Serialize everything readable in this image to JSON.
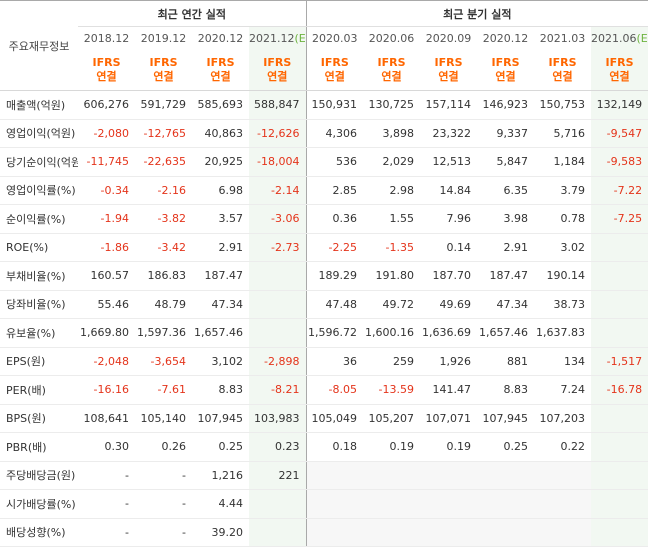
{
  "header": {
    "row_label": "주요재무정보",
    "annual_title": "최근 연간 실적",
    "quarterly_title": "최근 분기 실적",
    "estimate_mark": "(E)",
    "ifrs_line1": "IFRS",
    "ifrs_line2": "연결",
    "periods": [
      {
        "label": "2018.12"
      },
      {
        "label": "2019.12"
      },
      {
        "label": "2020.12"
      },
      {
        "label": "2021.12",
        "estimate": true
      },
      {
        "label": "2020.03"
      },
      {
        "label": "2020.06"
      },
      {
        "label": "2020.09"
      },
      {
        "label": "2020.12"
      },
      {
        "label": "2021.03"
      },
      {
        "label": "2021.06",
        "estimate": true
      }
    ]
  },
  "rows": [
    {
      "label": "매출액(억원)",
      "values": [
        "606,276",
        "591,729",
        "585,693",
        "588,847",
        "150,931",
        "130,725",
        "157,114",
        "146,923",
        "150,753",
        "132,149"
      ]
    },
    {
      "label": "영업이익(억원)",
      "values": [
        "-2,080",
        "-12,765",
        "40,863",
        "-12,626",
        "4,306",
        "3,898",
        "23,322",
        "9,337",
        "5,716",
        "-9,547"
      ]
    },
    {
      "label": "당기순이익(억원)",
      "values": [
        "-11,745",
        "-22,635",
        "20,925",
        "-18,004",
        "536",
        "2,029",
        "12,513",
        "5,847",
        "1,184",
        "-9,583"
      ]
    },
    {
      "label": "영업이익률(%)",
      "group_start": true,
      "values": [
        "-0.34",
        "-2.16",
        "6.98",
        "-2.14",
        "2.85",
        "2.98",
        "14.84",
        "6.35",
        "3.79",
        "-7.22"
      ]
    },
    {
      "label": "순이익률(%)",
      "values": [
        "-1.94",
        "-3.82",
        "3.57",
        "-3.06",
        "0.36",
        "1.55",
        "7.96",
        "3.98",
        "0.78",
        "-7.25"
      ]
    },
    {
      "label": "ROE(%)",
      "values": [
        "-1.86",
        "-3.42",
        "2.91",
        "-2.73",
        "-2.25",
        "-1.35",
        "0.14",
        "2.91",
        "3.02",
        ""
      ]
    },
    {
      "label": "부채비율(%)",
      "group_start": true,
      "values": [
        "160.57",
        "186.83",
        "187.47",
        "",
        "189.29",
        "191.80",
        "187.70",
        "187.47",
        "190.14",
        ""
      ]
    },
    {
      "label": "당좌비율(%)",
      "values": [
        "55.46",
        "48.79",
        "47.34",
        "",
        "47.48",
        "49.72",
        "49.69",
        "47.34",
        "38.73",
        ""
      ]
    },
    {
      "label": "유보율(%)",
      "values": [
        "1,669.80",
        "1,597.36",
        "1,657.46",
        "",
        "1,596.72",
        "1,600.16",
        "1,636.69",
        "1,657.46",
        "1,637.83",
        ""
      ]
    },
    {
      "label": "EPS(원)",
      "group_start": true,
      "values": [
        "-2,048",
        "-3,654",
        "3,102",
        "-2,898",
        "36",
        "259",
        "1,926",
        "881",
        "134",
        "-1,517"
      ]
    },
    {
      "label": "PER(배)",
      "values": [
        "-16.16",
        "-7.61",
        "8.83",
        "-8.21",
        "-8.05",
        "-13.59",
        "141.47",
        "8.83",
        "7.24",
        "-16.78"
      ]
    },
    {
      "label": "BPS(원)",
      "values": [
        "108,641",
        "105,140",
        "107,945",
        "103,983",
        "105,049",
        "105,207",
        "107,071",
        "107,945",
        "107,203",
        ""
      ]
    },
    {
      "label": "PBR(배)",
      "values": [
        "0.30",
        "0.26",
        "0.25",
        "0.23",
        "0.18",
        "0.19",
        "0.19",
        "0.25",
        "0.22",
        ""
      ]
    },
    {
      "label": "주당배당금(원)",
      "group_start": true,
      "values": [
        "-",
        "-",
        "1,216",
        "221",
        "",
        "",
        "",
        "",
        "",
        ""
      ]
    },
    {
      "label": "시가배당률(%)",
      "values": [
        "-",
        "-",
        "4.44",
        "",
        "",
        "",
        "",
        "",
        "",
        ""
      ]
    },
    {
      "label": "배당성향(%)",
      "values": [
        "-",
        "-",
        "39.20",
        "",
        "",
        "",
        "",
        "",
        "",
        ""
      ]
    }
  ],
  "colors": {
    "negative": "#e4341b",
    "ifrs": "#ff6600",
    "estimate_mark": "#6db33f",
    "estimate_column_bg": "#f2f8f2",
    "quarterly_empty_bg": "#f7f7f7"
  }
}
